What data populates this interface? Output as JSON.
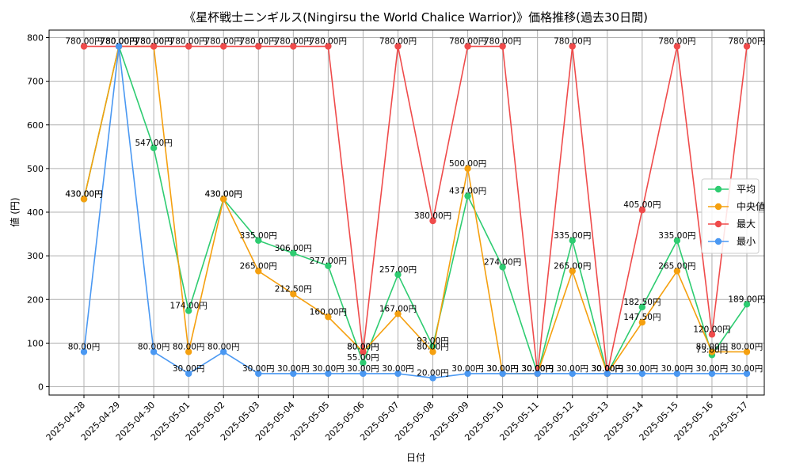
{
  "chart_data": {
    "type": "line",
    "title": "《星杯戦士ニンギルス(Ningirsu the World Chalice Warrior)》価格推移(過去30日間)",
    "xlabel": "日付",
    "ylabel": "値 (円)",
    "ylim": [
      0,
      800
    ],
    "yticks": [
      0,
      100,
      200,
      300,
      400,
      500,
      600,
      700,
      800
    ],
    "grid": true,
    "legend_position": "center-right",
    "value_suffix": "円",
    "categories": [
      "2025-04-28",
      "2025-04-29",
      "2025-04-30",
      "2025-05-01",
      "2025-05-02",
      "2025-05-03",
      "2025-05-04",
      "2025-05-05",
      "2025-05-06",
      "2025-05-07",
      "2025-05-08",
      "2025-05-09",
      "2025-05-10",
      "2025-05-11",
      "2025-05-12",
      "2025-05-13",
      "2025-05-14",
      "2025-05-15",
      "2025-05-16",
      "2025-05-17"
    ],
    "series": [
      {
        "name": "平均",
        "color": "#2ecc71",
        "values": [
          430,
          780,
          547,
          174,
          430,
          335,
          306,
          277,
          55,
          257,
          93,
          437,
          274,
          30,
          335,
          30,
          182.5,
          335,
          73,
          189
        ]
      },
      {
        "name": "中央値",
        "color": "#f5a00f",
        "values": [
          430,
          780,
          780,
          80,
          430,
          265,
          212.5,
          160,
          80,
          167,
          80,
          500,
          30,
          30,
          265,
          30,
          147.5,
          265,
          80,
          80
        ]
      },
      {
        "name": "最大",
        "color": "#ef4b4b",
        "values": [
          780,
          780,
          780,
          780,
          780,
          780,
          780,
          780,
          80,
          780,
          380,
          780,
          780,
          30,
          780,
          30,
          405,
          780,
          120,
          780
        ]
      },
      {
        "name": "最小",
        "color": "#4a98f2",
        "values": [
          80,
          780,
          80,
          30,
          80,
          30,
          30,
          30,
          30,
          30,
          20,
          30,
          30,
          30,
          30,
          30,
          30,
          30,
          30,
          30
        ]
      }
    ]
  }
}
